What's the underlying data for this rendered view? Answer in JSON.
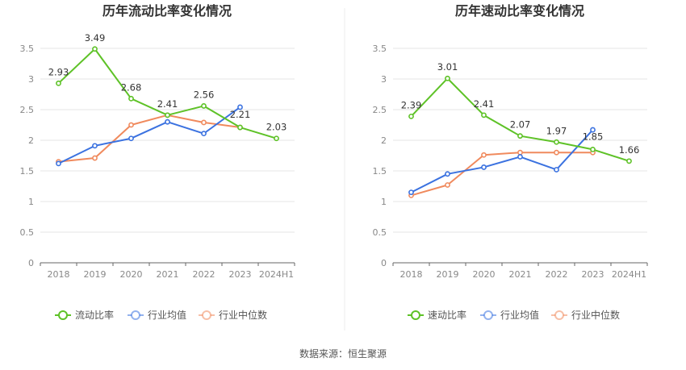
{
  "source_text": "数据来源：恒生聚源",
  "colors": {
    "main": "#5ec227",
    "avg": "#3b72e0",
    "median": "#f08a5d",
    "grid": "#e6e6e6",
    "axis": "#666666"
  },
  "chart_data": [
    {
      "type": "line",
      "title": "历年流动比率变化情况",
      "categories": [
        "2018",
        "2019",
        "2020",
        "2021",
        "2022",
        "2023",
        "2024H1"
      ],
      "ylim": [
        0,
        3.5
      ],
      "yticks": [
        "0",
        "0.5",
        "1",
        "1.5",
        "2",
        "2.5",
        "3",
        "3.5"
      ],
      "grid": true,
      "legend_position": "bottom",
      "series": [
        {
          "name": "流动比率",
          "color_key": "main",
          "values": [
            2.93,
            3.49,
            2.68,
            2.41,
            2.56,
            2.21,
            2.03
          ],
          "labels": [
            "2.93",
            "3.49",
            "2.68",
            "2.41",
            "2.56",
            "2.21",
            "2.03"
          ]
        },
        {
          "name": "行业均值",
          "color_key": "avg",
          "values": [
            1.62,
            1.91,
            2.03,
            2.3,
            2.11,
            2.54,
            null
          ]
        },
        {
          "name": "行业中位数",
          "color_key": "median",
          "values": [
            1.65,
            1.71,
            2.25,
            2.41,
            2.29,
            2.21,
            null
          ]
        }
      ]
    },
    {
      "type": "line",
      "title": "历年速动比率变化情况",
      "categories": [
        "2018",
        "2019",
        "2020",
        "2021",
        "2022",
        "2023",
        "2024H1"
      ],
      "ylim": [
        0,
        3.5
      ],
      "yticks": [
        "0",
        "0.5",
        "1",
        "1.5",
        "2",
        "2.5",
        "3",
        "3.5"
      ],
      "grid": true,
      "legend_position": "bottom",
      "series": [
        {
          "name": "速动比率",
          "color_key": "main",
          "values": [
            2.39,
            3.01,
            2.41,
            2.07,
            1.97,
            1.85,
            1.66
          ],
          "labels": [
            "2.39",
            "3.01",
            "2.41",
            "2.07",
            "1.97",
            "1.85",
            "1.66"
          ]
        },
        {
          "name": "行业均值",
          "color_key": "avg",
          "values": [
            1.15,
            1.45,
            1.56,
            1.73,
            1.52,
            2.17,
            null
          ]
        },
        {
          "name": "行业中位数",
          "color_key": "median",
          "values": [
            1.1,
            1.27,
            1.76,
            1.8,
            1.8,
            1.8,
            null
          ]
        }
      ]
    }
  ]
}
